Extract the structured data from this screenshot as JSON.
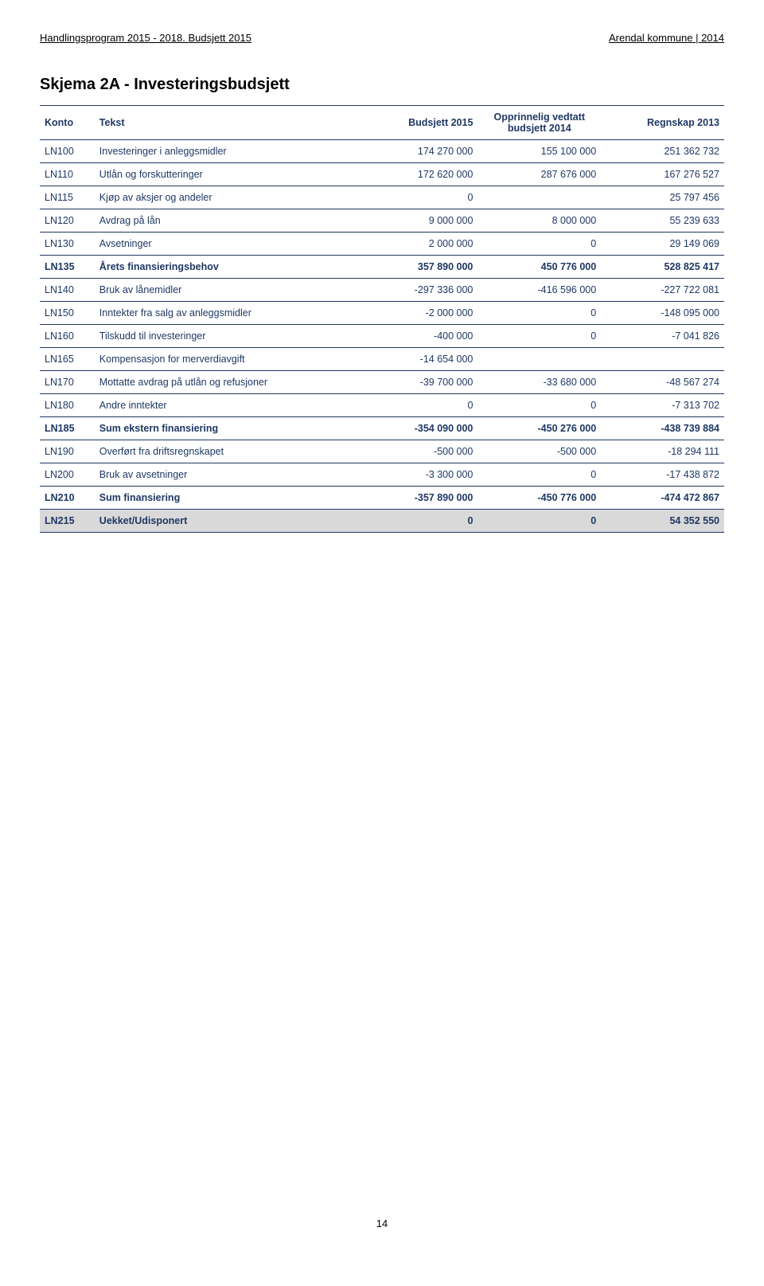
{
  "header": {
    "left": "Handlingsprogram 2015 - 2018. Budsjett 2015",
    "right": "Arendal kommune | 2014"
  },
  "title": "Skjema 2A - Investeringsbudsjett",
  "columns": {
    "konto": "Konto",
    "tekst": "Tekst",
    "budsjett": "Budsjett 2015",
    "opprinnelig": "Opprinnelig vedtatt budsjett 2014",
    "regnskap": "Regnskap 2013"
  },
  "rows": [
    {
      "konto": "LN100",
      "tekst": "Investeringer i anleggsmidler",
      "c1": "174 270 000",
      "c2": "155 100 000",
      "c3": "251 362 732",
      "bold": false,
      "grey": false
    },
    {
      "konto": "LN110",
      "tekst": "Utlån og forskutteringer",
      "c1": "172 620 000",
      "c2": "287 676 000",
      "c3": "167 276 527",
      "bold": false,
      "grey": false
    },
    {
      "konto": "LN115",
      "tekst": "Kjøp av aksjer og andeler",
      "c1": "0",
      "c2": "",
      "c3": "25 797 456",
      "bold": false,
      "grey": false
    },
    {
      "konto": "LN120",
      "tekst": "Avdrag på lån",
      "c1": "9 000 000",
      "c2": "8 000 000",
      "c3": "55 239 633",
      "bold": false,
      "grey": false
    },
    {
      "konto": "LN130",
      "tekst": "Avsetninger",
      "c1": "2 000 000",
      "c2": "0",
      "c3": "29 149 069",
      "bold": false,
      "grey": false
    },
    {
      "konto": "LN135",
      "tekst": "Årets finansieringsbehov",
      "c1": "357 890 000",
      "c2": "450 776 000",
      "c3": "528 825 417",
      "bold": true,
      "grey": false
    },
    {
      "konto": "LN140",
      "tekst": "Bruk av lånemidler",
      "c1": "-297 336 000",
      "c2": "-416 596 000",
      "c3": "-227 722 081",
      "bold": false,
      "grey": false
    },
    {
      "konto": "LN150",
      "tekst": "Inntekter fra salg av anleggsmidler",
      "c1": "-2 000 000",
      "c2": "0",
      "c3": "-148 095 000",
      "bold": false,
      "grey": false
    },
    {
      "konto": "LN160",
      "tekst": "Tilskudd til investeringer",
      "c1": "-400 000",
      "c2": "0",
      "c3": "-7 041 826",
      "bold": false,
      "grey": false
    },
    {
      "konto": "LN165",
      "tekst": "Kompensasjon for merverdiavgift",
      "c1": "-14 654 000",
      "c2": "",
      "c3": "",
      "bold": false,
      "grey": false
    },
    {
      "konto": "LN170",
      "tekst": "Mottatte avdrag på utlån og refusjoner",
      "c1": "-39 700 000",
      "c2": "-33 680 000",
      "c3": "-48 567 274",
      "bold": false,
      "grey": false
    },
    {
      "konto": "LN180",
      "tekst": "Andre inntekter",
      "c1": "0",
      "c2": "0",
      "c3": "-7 313 702",
      "bold": false,
      "grey": false
    },
    {
      "konto": "LN185",
      "tekst": "Sum ekstern finansiering",
      "c1": "-354 090 000",
      "c2": "-450 276 000",
      "c3": "-438 739 884",
      "bold": true,
      "grey": false
    },
    {
      "konto": "LN190",
      "tekst": "Overført fra driftsregnskapet",
      "c1": "-500 000",
      "c2": "-500 000",
      "c3": "-18 294 111",
      "bold": false,
      "grey": false
    },
    {
      "konto": "LN200",
      "tekst": "Bruk av avsetninger",
      "c1": "-3 300 000",
      "c2": "0",
      "c3": "-17 438 872",
      "bold": false,
      "grey": false
    },
    {
      "konto": "LN210",
      "tekst": "Sum finansiering",
      "c1": "-357 890 000",
      "c2": "-450 776 000",
      "c3": "-474 472 867",
      "bold": true,
      "grey": false
    },
    {
      "konto": "LN215",
      "tekst": "Uekket/Udisponert",
      "c1": "0",
      "c2": "0",
      "c3": "54 352 550",
      "bold": true,
      "grey": true
    }
  ],
  "pageNumber": "14",
  "style": {
    "text_color": "#1f3864",
    "border_color": "#1f3864",
    "grey_bg": "#d9d9d9",
    "page_bg": "#ffffff",
    "body_font_size": 12.5,
    "title_font_size": 20
  }
}
